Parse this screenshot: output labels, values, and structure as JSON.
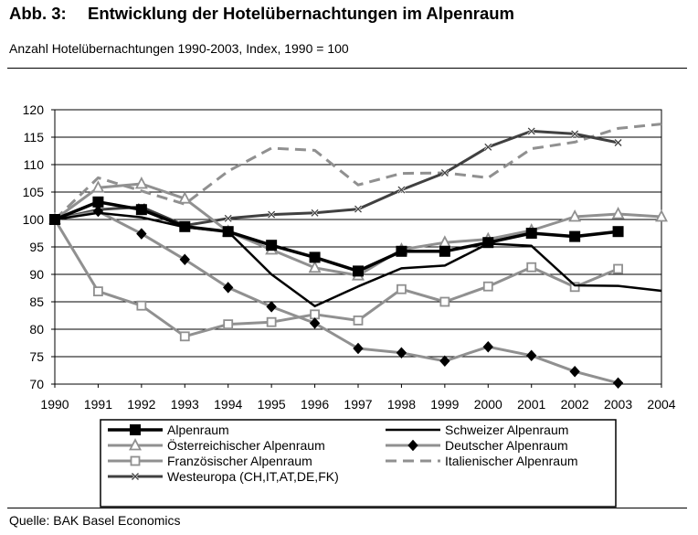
{
  "header": {
    "label": "Abb. 3:",
    "title": "Entwicklung der Hotelübernachtungen im Alpenraum",
    "subtitle": "Anzahl Hotelübernachtungen 1990-2003, Index, 1990 = 100"
  },
  "footer": {
    "source": "Quelle: BAK Basel Economics"
  },
  "chart_data": {
    "type": "line",
    "title": "Entwicklung der Hotelübernachtungen im Alpenraum",
    "subtitle": "Anzahl Hotelübernachtungen 1990-2003, Index, 1990 = 100",
    "xlabel": "",
    "ylabel": "",
    "ylim": [
      70,
      120
    ],
    "yticks": [
      70,
      75,
      80,
      85,
      90,
      95,
      100,
      105,
      110,
      115,
      120
    ],
    "grid": true,
    "legend_position": "bottom",
    "x": [
      1990,
      1991,
      1992,
      1993,
      1994,
      1995,
      1996,
      1997,
      1998,
      1999,
      2000,
      2001,
      2002,
      2003,
      2004
    ],
    "series": [
      {
        "name": "Alpenraum",
        "color": "#000000",
        "dash": "",
        "width": 3.5,
        "marker": "square-filled",
        "values": [
          100,
          103.2,
          101.8,
          98.7,
          97.8,
          95.3,
          93.1,
          90.6,
          94.2,
          94.2,
          95.8,
          97.5,
          96.9,
          97.8,
          null
        ]
      },
      {
        "name": "Schweizer Alpenraum",
        "color": "#000000",
        "dash": "",
        "width": 2.5,
        "marker": "none",
        "values": [
          100,
          101.2,
          100.4,
          98.6,
          97.8,
          90.0,
          84.2,
          87.8,
          91.1,
          91.6,
          95.6,
          95.2,
          88.0,
          87.9,
          87.0
        ]
      },
      {
        "name": "Österreichischer Alpenraum",
        "color": "#909090",
        "dash": "",
        "width": 3,
        "marker": "triangle-open",
        "values": [
          100,
          105.8,
          106.5,
          103.8,
          97.8,
          94.5,
          91.2,
          89.8,
          94.5,
          95.8,
          96.4,
          98.0,
          100.5,
          101.0,
          100.5
        ]
      },
      {
        "name": "Deutscher Alpenraum",
        "color": "#909090",
        "dash": "",
        "width": 3,
        "marker": "diamond-filled",
        "values": [
          100,
          101.5,
          97.4,
          92.7,
          87.6,
          84.1,
          81.1,
          76.5,
          75.7,
          74.2,
          76.8,
          75.2,
          72.3,
          70.2,
          null
        ]
      },
      {
        "name": "Französischer Alpenraum",
        "color": "#909090",
        "dash": "",
        "width": 3,
        "marker": "square-open",
        "values": [
          100,
          86.9,
          84.3,
          78.7,
          80.9,
          81.3,
          82.7,
          81.6,
          87.3,
          85.0,
          87.8,
          91.3,
          87.7,
          91.0,
          null
        ]
      },
      {
        "name": "Italienischer Alpenraum",
        "color": "#909090",
        "dash": "12,7",
        "width": 3,
        "marker": "none",
        "values": [
          100,
          107.6,
          105.2,
          102.8,
          108.8,
          113.0,
          112.6,
          106.3,
          108.4,
          108.5,
          107.6,
          112.9,
          114.1,
          116.6,
          117.4
        ]
      },
      {
        "name": "Westeuropa (CH,IT,AT,DE,FK)",
        "color": "#404040",
        "dash": "",
        "width": 3,
        "marker": "x",
        "values": [
          100,
          101.8,
          102.3,
          98.9,
          100.2,
          100.9,
          101.2,
          101.9,
          105.4,
          108.5,
          113.2,
          116.1,
          115.6,
          114.0,
          null
        ]
      }
    ]
  }
}
